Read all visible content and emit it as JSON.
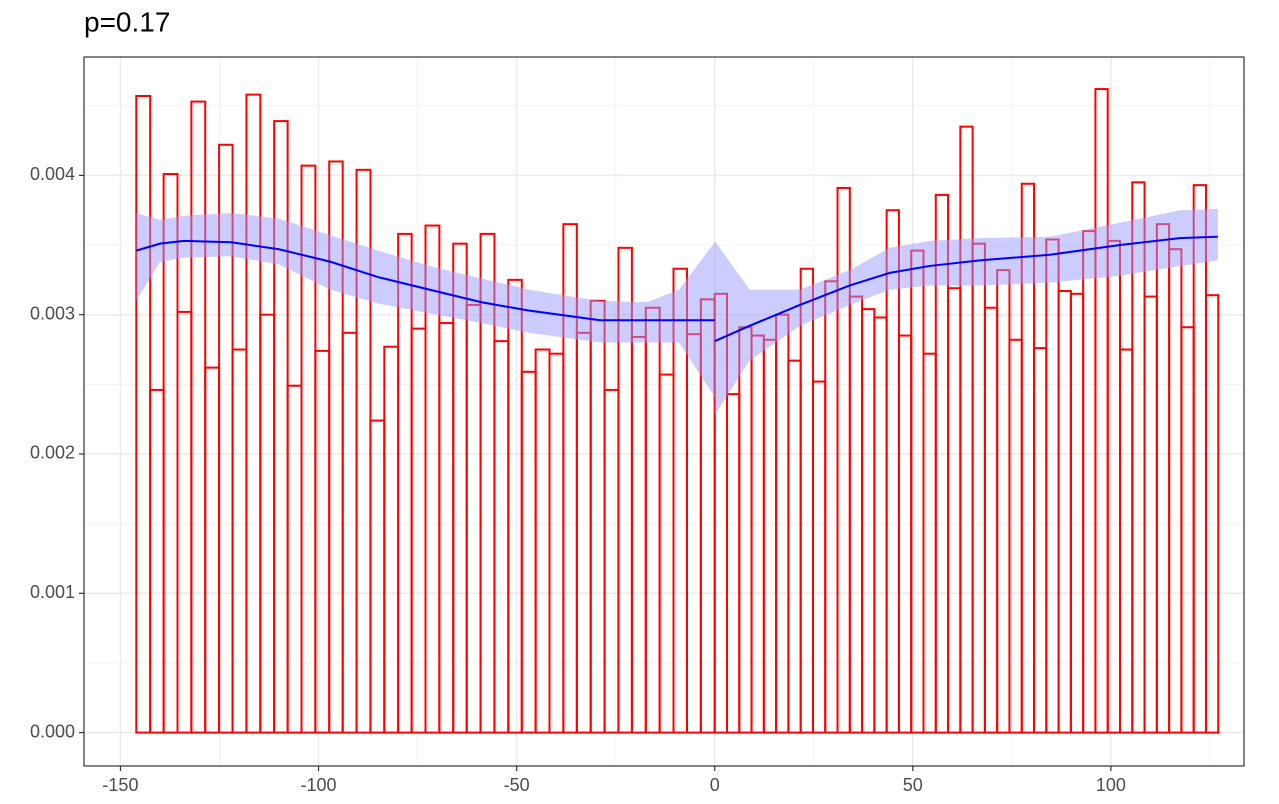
{
  "chart_data": {
    "type": "histogram",
    "title": "p=0.17",
    "bins": [
      -146,
      -142.5,
      -139.1,
      -135.6,
      -132.1,
      -128.6,
      -125.1,
      -121.7,
      -118.2,
      -114.7,
      -111.2,
      -107.8,
      -104.3,
      -100.8,
      -97.3,
      -93.9,
      -90.4,
      -86.9,
      -83.4,
      -79.9,
      -76.5,
      -73.0,
      -69.5,
      -66.0,
      -62.6,
      -59.1,
      -55.6,
      -52.1,
      -48.7,
      -45.2,
      -41.7,
      -38.2,
      -34.8,
      -31.3,
      -27.8,
      -24.3,
      -20.9,
      -17.4,
      -13.9,
      -10.4,
      -7.0,
      -3.5,
      0,
      3.1,
      6.2,
      9.3,
      12.4,
      15.5,
      18.6,
      21.7,
      24.8,
      27.9,
      31.0,
      34.1,
      37.2,
      40.3,
      43.4,
      46.5,
      49.6,
      52.7,
      55.8,
      58.9,
      62.0,
      65.1,
      68.2,
      71.3,
      74.4,
      77.5,
      80.6,
      83.7,
      86.8,
      89.9,
      93.0,
      96.1,
      99.2,
      102.3,
      105.4,
      108.5,
      111.6,
      114.7,
      117.8,
      120.9,
      124.0,
      127.1
    ],
    "values": [
      0.00457,
      0.00246,
      0.00401,
      0.00302,
      0.00453,
      0.00262,
      0.00422,
      0.00275,
      0.00458,
      0.003,
      0.00439,
      0.00249,
      0.00407,
      0.00274,
      0.0041,
      0.00287,
      0.00404,
      0.00224,
      0.00277,
      0.00358,
      0.0029,
      0.00364,
      0.00294,
      0.00351,
      0.00307,
      0.00358,
      0.00281,
      0.00325,
      0.00259,
      0.00275,
      0.00272,
      0.00365,
      0.00287,
      0.0031,
      0.00246,
      0.00348,
      0.00284,
      0.00305,
      0.00257,
      0.00333,
      0.00286,
      0.00311,
      0.00315,
      0.00243,
      0.00291,
      0.00285,
      0.00282,
      0.003,
      0.00267,
      0.00333,
      0.00252,
      0.00324,
      0.00391,
      0.00313,
      0.00304,
      0.00298,
      0.00375,
      0.00285,
      0.00346,
      0.00272,
      0.00386,
      0.00319,
      0.00435,
      0.00351,
      0.00305,
      0.00332,
      0.00282,
      0.00394,
      0.00276,
      0.00354,
      0.00317,
      0.00315,
      0.0036,
      0.00462,
      0.00353,
      0.00275,
      0.00395,
      0.00313,
      0.00365,
      0.00347,
      0.00291,
      0.00393,
      0.00314
    ],
    "color": "#ff0000",
    "fits": [
      {
        "x": [
          -146,
          -140,
          -134,
          -122,
          -110,
          -97,
          -85,
          -72,
          -59,
          -47,
          -34,
          -29,
          -17,
          -9,
          0
        ],
        "values": [
          0.00346,
          0.00351,
          0.00353,
          0.00352,
          0.00347,
          0.00338,
          0.00327,
          0.00318,
          0.00309,
          0.00303,
          0.00298,
          0.00296,
          0.00296,
          0.00296,
          0.00296
        ],
        "upper": [
          0.00373,
          0.00368,
          0.00371,
          0.00373,
          0.00369,
          0.00357,
          0.00346,
          0.00335,
          0.00326,
          0.00318,
          0.00312,
          0.0031,
          0.00309,
          0.00318,
          0.00352
        ],
        "lower": [
          0.0031,
          0.00338,
          0.00341,
          0.00342,
          0.00336,
          0.00318,
          0.00308,
          0.00301,
          0.00294,
          0.00287,
          0.00282,
          0.0028,
          0.0028,
          0.0028,
          0.00241
        ]
      },
      {
        "x": [
          0,
          8.8,
          21.5,
          34.1,
          44.2,
          54.3,
          66.9,
          84.6,
          102.3,
          117.4,
          127
        ],
        "values": [
          0.00281,
          0.00292,
          0.00307,
          0.00321,
          0.0033,
          0.00335,
          0.00339,
          0.00343,
          0.0035,
          0.00355,
          0.00356
        ],
        "upper": [
          0.00353,
          0.00318,
          0.00318,
          0.00332,
          0.00348,
          0.00353,
          0.00355,
          0.00356,
          0.00366,
          0.00375,
          0.00376
        ],
        "lower": [
          0.00228,
          0.00267,
          0.00292,
          0.00307,
          0.00318,
          0.00321,
          0.00321,
          0.00323,
          0.00328,
          0.00335,
          0.00339
        ]
      }
    ],
    "fit_color": "#0000ff",
    "band_color": "#9999ff",
    "xlim": [
      -159.2,
      133.6
    ],
    "ylim": [
      -0.00024,
      0.00485
    ],
    "xticks": [
      -150,
      -100,
      -50,
      0,
      50,
      100
    ],
    "yticks": [
      {
        "value": 0,
        "label": "0.000"
      },
      0.001,
      0.002,
      0.003,
      0.004
    ],
    "grid": true
  }
}
